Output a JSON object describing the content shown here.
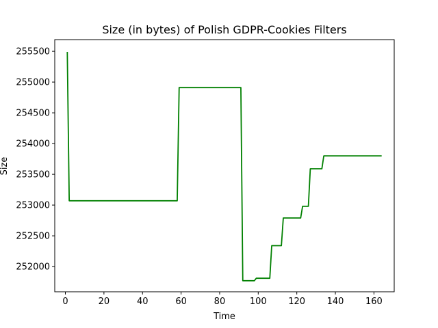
{
  "chart_data": {
    "type": "line",
    "title": "Size (in bytes) of Polish GDPR-Cookies Filters",
    "xlabel": "Time",
    "ylabel": "Size",
    "xlim": [
      -5.5,
      170.5
    ],
    "ylim": [
      251590,
      255690
    ],
    "xticks": [
      0,
      20,
      40,
      60,
      80,
      100,
      120,
      140,
      160
    ],
    "yticks": [
      252000,
      252500,
      253000,
      253500,
      254000,
      254500,
      255000,
      255500
    ],
    "grid": false,
    "colors": {
      "line": "#008000"
    },
    "series": [
      {
        "x": [
          1,
          2,
          58,
          59,
          91,
          92,
          98,
          99,
          106,
          107,
          112,
          113,
          122,
          123,
          126,
          127,
          133,
          134,
          164
        ],
        "y": [
          255490,
          253070,
          253070,
          254910,
          254910,
          251770,
          251770,
          251810,
          251810,
          252340,
          252340,
          252790,
          252790,
          252980,
          252980,
          253590,
          253590,
          253800,
          253800
        ]
      }
    ]
  }
}
